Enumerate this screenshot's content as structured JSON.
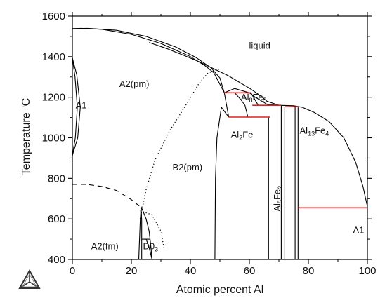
{
  "chart_data": {
    "type": "phase-diagram",
    "xlabel": "Atomic percent Al",
    "ylabel": "Temperature",
    "ylabel_unit": "°C",
    "xlim": [
      0,
      100
    ],
    "ylim": [
      400,
      1600
    ],
    "x_ticks": [
      0,
      20,
      40,
      60,
      80,
      100
    ],
    "y_ticks": [
      400,
      600,
      800,
      1000,
      1200,
      1400,
      1600
    ],
    "region_labels": [
      {
        "id": "liquid",
        "text": "liquid",
        "x": 63.5,
        "y": 1440
      },
      {
        "id": "a2pm",
        "text": "A2(pm)",
        "x": 21,
        "y": 1250
      },
      {
        "id": "a1-left",
        "text": "A1",
        "x": 3,
        "y": 1145
      },
      {
        "id": "b2pm",
        "text": "B2(pm)",
        "x": 39,
        "y": 840
      },
      {
        "id": "a2fm",
        "text": "A2(fm)",
        "x": 11,
        "y": 450
      },
      {
        "id": "d03",
        "parts": [
          "D0",
          "3"
        ],
        "x": 26.5,
        "y": 450
      },
      {
        "id": "al8fe5",
        "parts": [
          "Al",
          "8",
          "Fe",
          "5"
        ],
        "x": 61.5,
        "y": 1185
      },
      {
        "id": "al2fe",
        "parts": [
          "Al",
          "2",
          "Fe"
        ],
        "x": 57.5,
        "y": 1000
      },
      {
        "id": "al13fe4",
        "parts": [
          "Al",
          "13",
          "Fe",
          "4"
        ],
        "x": 82,
        "y": 1020
      },
      {
        "id": "al5fe2",
        "parts": [
          "Al",
          "5",
          "Fe",
          "2"
        ],
        "x": 69.5,
        "y": 700
      },
      {
        "id": "a1-right",
        "text": "A1",
        "x": 97,
        "y": 530
      }
    ],
    "invariant_lines": [
      {
        "T": 1222,
        "x": [
          51.5,
          60.5
        ]
      },
      {
        "T": 1160,
        "x": [
          61,
          70.8
        ]
      },
      {
        "T": 1153,
        "x": [
          72,
          76.5
        ]
      },
      {
        "T": 1102,
        "x": [
          53,
          67
        ]
      },
      {
        "T": 655,
        "x": [
          76.5,
          100
        ]
      }
    ],
    "phase_boundaries": [
      {
        "id": "a2-liquidus",
        "style": "solid",
        "points": [
          [
            0,
            1538
          ],
          [
            3,
            1540
          ],
          [
            10,
            1535
          ],
          [
            20,
            1510
          ],
          [
            30,
            1465
          ],
          [
            40,
            1400
          ],
          [
            45,
            1355
          ],
          [
            48,
            1320
          ],
          [
            51.5,
            1222
          ]
        ]
      },
      {
        "id": "a2-solidus",
        "style": "solid",
        "points": [
          [
            0,
            1538
          ],
          [
            5,
            1540
          ],
          [
            15,
            1530
          ],
          [
            25,
            1500
          ],
          [
            35,
            1448
          ],
          [
            42,
            1395
          ],
          [
            47,
            1345
          ],
          [
            50,
            1295
          ],
          [
            51.5,
            1222
          ]
        ]
      },
      {
        "id": "liquidus-right",
        "style": "solid",
        "points": [
          [
            51.5,
            1222
          ],
          [
            55,
            1243
          ],
          [
            60,
            1222
          ],
          [
            62,
            1200
          ],
          [
            66,
            1165
          ],
          [
            70,
            1160
          ],
          [
            75,
            1158
          ],
          [
            78,
            1150
          ],
          [
            82,
            1125
          ],
          [
            87,
            1080
          ],
          [
            92,
            1000
          ],
          [
            96,
            880
          ],
          [
            98.5,
            760
          ],
          [
            100,
            660
          ]
        ]
      },
      {
        "id": "liquidus-upper",
        "style": "solid",
        "points": [
          [
            26,
            1470
          ],
          [
            32,
            1440
          ],
          [
            38,
            1405
          ],
          [
            43,
            1375
          ],
          [
            48,
            1340
          ],
          [
            53,
            1305
          ],
          [
            57,
            1270
          ],
          [
            60,
            1245
          ],
          [
            63,
            1215
          ],
          [
            66,
            1180
          ],
          [
            70,
            1160
          ]
        ]
      },
      {
        "id": "a1-loop-outer",
        "style": "solid",
        "points": [
          [
            0,
            1394
          ],
          [
            1.5,
            1310
          ],
          [
            2.7,
            1150
          ],
          [
            1.8,
            1000
          ],
          [
            0,
            912
          ]
        ]
      },
      {
        "id": "a1-loop-inner",
        "style": "solid",
        "points": [
          [
            0,
            1394
          ],
          [
            0.9,
            1300
          ],
          [
            1.7,
            1150
          ],
          [
            1,
            1000
          ],
          [
            0,
            912
          ]
        ]
      },
      {
        "id": "a2-b2-ordering",
        "style": "dotted",
        "points": [
          [
            23,
            600
          ],
          [
            25,
            745
          ],
          [
            28,
            890
          ],
          [
            33,
            1035
          ],
          [
            38,
            1150
          ],
          [
            43,
            1270
          ],
          [
            46,
            1320
          ],
          [
            50,
            1340
          ]
        ]
      },
      {
        "id": "curie-line",
        "style": "dashed",
        "points": [
          [
            0,
            770
          ],
          [
            5,
            770
          ],
          [
            10,
            760
          ],
          [
            15,
            740
          ],
          [
            20,
            695
          ],
          [
            23,
            660
          ]
        ]
      },
      {
        "id": "b2-d03-dotted",
        "style": "dotted",
        "points": [
          [
            23,
            640
          ],
          [
            27,
            620
          ],
          [
            30,
            540
          ],
          [
            31,
            460
          ]
        ]
      },
      {
        "id": "b2-al2fe",
        "style": "solid",
        "points": [
          [
            48.3,
            400
          ],
          [
            48.5,
            800
          ],
          [
            49,
            1000
          ],
          [
            50.5,
            1150
          ],
          [
            53,
            1102
          ]
        ]
      },
      {
        "id": "al8fe5-left",
        "style": "solid",
        "points": [
          [
            51.5,
            1222
          ],
          [
            53,
            1102
          ]
        ]
      },
      {
        "id": "al8fe5-right",
        "style": "solid",
        "points": [
          [
            60.5,
            1222
          ],
          [
            63,
            1160
          ]
        ]
      },
      {
        "id": "al8fe5-inner",
        "style": "solid",
        "points": [
          [
            55,
            1222
          ],
          [
            57,
            1190
          ],
          [
            58.5,
            1160
          ],
          [
            59.5,
            1102
          ]
        ]
      },
      {
        "id": "al2fe-right",
        "style": "solid",
        "points": [
          [
            66.5,
            1102
          ],
          [
            66.5,
            400
          ]
        ]
      },
      {
        "id": "al5fe2-left",
        "style": "solid",
        "points": [
          [
            70.8,
            1160
          ],
          [
            70.8,
            400
          ]
        ]
      },
      {
        "id": "al5fe2-right",
        "style": "solid",
        "points": [
          [
            72,
            1153
          ],
          [
            72,
            400
          ]
        ]
      },
      {
        "id": "al13fe4-left",
        "style": "solid",
        "points": [
          [
            75.5,
            1153
          ],
          [
            75.5,
            400
          ]
        ]
      },
      {
        "id": "al13fe4-right",
        "style": "solid",
        "points": [
          [
            76.5,
            1150
          ],
          [
            76.5,
            400
          ]
        ]
      },
      {
        "id": "d03-left",
        "style": "solid",
        "points": [
          [
            22.5,
            400
          ],
          [
            23,
            590
          ],
          [
            23.3,
            660
          ]
        ]
      },
      {
        "id": "d03-left-inner",
        "style": "solid",
        "points": [
          [
            23.5,
            400
          ],
          [
            23.5,
            590
          ],
          [
            23.3,
            660
          ]
        ]
      },
      {
        "id": "d03-top",
        "style": "solid",
        "points": [
          [
            23.3,
            660
          ],
          [
            25,
            600
          ],
          [
            26,
            540
          ],
          [
            26.5,
            480
          ],
          [
            27,
            400
          ]
        ]
      },
      {
        "id": "d03-right",
        "style": "solid",
        "points": [
          [
            25,
            500
          ],
          [
            26,
            460
          ],
          [
            27,
            400
          ]
        ]
      },
      {
        "id": "d03-hline",
        "style": "solid",
        "points": [
          [
            23.5,
            500
          ],
          [
            26.4,
            500
          ]
        ]
      }
    ]
  },
  "colors": {
    "line": "#000000",
    "invariant": "#e02020",
    "background": "#ffffff"
  },
  "logo": {
    "icon": "triangle-logo"
  }
}
